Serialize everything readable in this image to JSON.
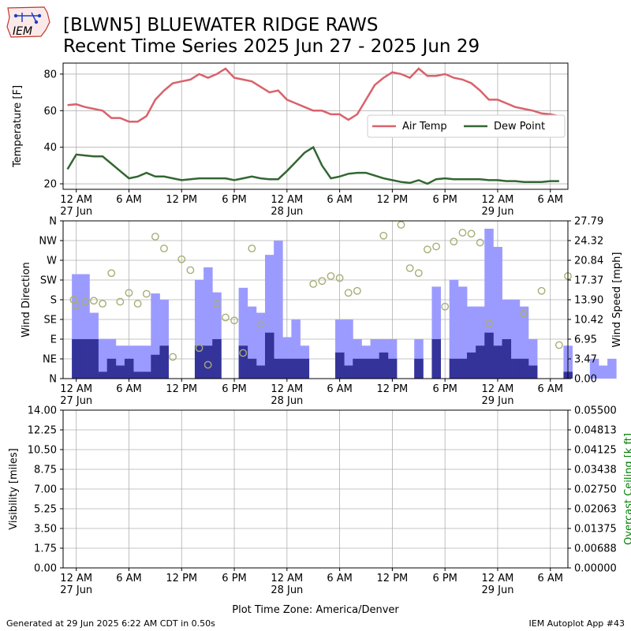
{
  "header": {
    "title_line1": "[BLWN5] BLUEWATER RIDGE RAWS",
    "title_line2": "Recent Time Series 2025 Jun 27 - 2025 Jun 29",
    "logo_text": "IEM"
  },
  "footer": {
    "generated": "Generated at 29 Jun 2025 6:22 AM CDT in 0.50s",
    "app": "IEM Autoplot App #43"
  },
  "colors": {
    "air_temp": "#d9626b",
    "dew_point": "#336633",
    "gust_bar": "#9b9bff",
    "speed_bar": "#33339a",
    "direction_marker": "#a8ad74",
    "ceiling_axis": "#008000",
    "grid": "#b0b0b0"
  },
  "x_axis": {
    "start": "2025-06-27 00:00",
    "end": "2025-06-29 06:00",
    "timezone_label": "Plot Time Zone: America/Denver",
    "tick_hours": [
      0,
      6,
      12,
      18,
      24,
      30,
      36,
      42,
      48,
      54
    ],
    "tick_labels": [
      "12 AM",
      "6 AM",
      "12 PM",
      "6 PM",
      "12 AM",
      "6 AM",
      "12 PM",
      "6 PM",
      "12 AM",
      "6 AM"
    ],
    "date_labels": [
      "27 Jun",
      "28 Jun",
      "29 Jun"
    ],
    "date_label_hours": [
      0,
      24,
      48
    ]
  },
  "chart_data": [
    {
      "type": "line",
      "ylabel": "Temperature [F]",
      "ylim": [
        17,
        86
      ],
      "yticks": [
        20,
        40,
        60,
        80
      ],
      "grid": true,
      "legend": "upper-right",
      "series": [
        {
          "name": "Air Temp",
          "color": "#d9626b",
          "points": [
            [
              -1,
              63
            ],
            [
              0,
              63.5
            ],
            [
              1,
              62
            ],
            [
              2,
              61
            ],
            [
              3,
              60
            ],
            [
              4,
              56
            ],
            [
              5,
              56
            ],
            [
              6,
              54
            ],
            [
              7,
              54
            ],
            [
              8,
              57
            ],
            [
              9,
              66
            ],
            [
              10,
              71
            ],
            [
              11,
              75
            ],
            [
              12,
              76
            ],
            [
              13,
              77
            ],
            [
              14,
              80
            ],
            [
              15,
              78
            ],
            [
              16,
              80
            ],
            [
              17,
              83
            ],
            [
              18,
              78
            ],
            [
              19,
              77
            ],
            [
              20,
              76
            ],
            [
              21,
              73
            ],
            [
              22,
              70
            ],
            [
              23,
              71
            ],
            [
              24,
              66
            ],
            [
              25,
              64
            ],
            [
              26,
              62
            ],
            [
              27,
              60
            ],
            [
              28,
              60
            ],
            [
              29,
              58
            ],
            [
              30,
              58
            ],
            [
              31,
              55
            ],
            [
              32,
              58
            ],
            [
              33,
              66
            ],
            [
              34,
              74
            ],
            [
              35,
              78
            ],
            [
              36,
              81
            ],
            [
              37,
              80
            ],
            [
              38,
              78
            ],
            [
              39,
              83
            ],
            [
              40,
              79
            ],
            [
              41,
              79
            ],
            [
              42,
              80
            ],
            [
              43,
              78
            ],
            [
              44,
              77
            ],
            [
              45,
              75
            ],
            [
              46,
              71
            ],
            [
              47,
              66
            ],
            [
              48,
              66
            ],
            [
              49,
              64
            ],
            [
              50,
              62
            ],
            [
              51,
              61
            ],
            [
              52,
              60
            ],
            [
              53,
              58.5
            ],
            [
              54,
              58
            ],
            [
              55,
              57
            ]
          ]
        },
        {
          "name": "Dew Point",
          "color": "#336633",
          "points": [
            [
              -1,
              28
            ],
            [
              0,
              36
            ],
            [
              1,
              35.5
            ],
            [
              2,
              35
            ],
            [
              3,
              35
            ],
            [
              4,
              31
            ],
            [
              5,
              27
            ],
            [
              6,
              23
            ],
            [
              7,
              24
            ],
            [
              8,
              26
            ],
            [
              9,
              24
            ],
            [
              10,
              24
            ],
            [
              11,
              23
            ],
            [
              12,
              22
            ],
            [
              13,
              22.5
            ],
            [
              14,
              23
            ],
            [
              15,
              23
            ],
            [
              16,
              23
            ],
            [
              17,
              23
            ],
            [
              18,
              22
            ],
            [
              19,
              23
            ],
            [
              20,
              24
            ],
            [
              21,
              23
            ],
            [
              22,
              22.5
            ],
            [
              23,
              22.5
            ],
            [
              24,
              27
            ],
            [
              25,
              32
            ],
            [
              26,
              37
            ],
            [
              27,
              40
            ],
            [
              28,
              30
            ],
            [
              29,
              23
            ],
            [
              30,
              24
            ],
            [
              31,
              25.5
            ],
            [
              32,
              26
            ],
            [
              33,
              26
            ],
            [
              34,
              24.5
            ],
            [
              35,
              23
            ],
            [
              36,
              22
            ],
            [
              37,
              21
            ],
            [
              38,
              20.5
            ],
            [
              39,
              22
            ],
            [
              40,
              20
            ],
            [
              41,
              22.5
            ],
            [
              42,
              23
            ],
            [
              43,
              22.5
            ],
            [
              44,
              22.5
            ],
            [
              45,
              22.5
            ],
            [
              46,
              22.5
            ],
            [
              47,
              22
            ],
            [
              48,
              22
            ],
            [
              49,
              21.5
            ],
            [
              50,
              21.5
            ],
            [
              51,
              21
            ],
            [
              52,
              21
            ],
            [
              53,
              21
            ],
            [
              54,
              21.5
            ],
            [
              55,
              21.5
            ]
          ]
        }
      ]
    },
    {
      "type": "bar",
      "ylabel": "Wind Direction",
      "y2label": "Wind Speed [mph]",
      "direction_ticks": [
        "N",
        "NE",
        "E",
        "SE",
        "S",
        "SW",
        "W",
        "NW",
        "N"
      ],
      "speed_ticks": [
        "0.00",
        "3.47",
        "6.95",
        "10.42",
        "13.90",
        "17.37",
        "20.84",
        "24.32",
        "27.79"
      ],
      "speed_lim": [
        0,
        27.79
      ],
      "grid": true,
      "gust_mph": [
        18.4,
        18.4,
        11.6,
        7.0,
        7.0,
        5.8,
        5.8,
        5.8,
        5.8,
        15.0,
        13.9,
        0,
        0,
        0,
        17.4,
        19.6,
        15.2,
        0,
        0,
        16,
        12.7,
        11.6,
        21.8,
        24.3,
        7.3,
        10.4,
        5.8,
        0,
        0,
        0,
        10.4,
        10.4,
        6.95,
        5.8,
        6.95,
        6.95,
        6.95,
        0,
        0,
        6.95,
        0,
        16.2,
        0,
        17.4,
        16.2,
        12.7,
        12.7,
        26.4,
        23.2,
        13.9,
        13.9,
        12.7,
        6.95,
        0,
        0,
        0,
        5.8,
        0,
        0,
        3.5,
        2.3,
        3.5
      ],
      "speed_mph": [
        6.95,
        6.95,
        6.95,
        1.2,
        3.5,
        2.3,
        3.5,
        1.2,
        1.2,
        4.2,
        5.8,
        0,
        0,
        0,
        5.8,
        5.8,
        6.95,
        0,
        0,
        5.8,
        3.5,
        2.3,
        8.1,
        3.5,
        3.5,
        3.5,
        3.5,
        0,
        0,
        0,
        4.6,
        2.3,
        3.5,
        3.5,
        3.5,
        4.6,
        3.5,
        0,
        0,
        3.5,
        0,
        6.95,
        0,
        3.5,
        3.5,
        4.6,
        5.8,
        8.1,
        5.8,
        6.95,
        3.5,
        3.5,
        2.3,
        0,
        0,
        0,
        1.2,
        0,
        0,
        0,
        0,
        0
      ],
      "direction_points": [
        [
          -0.3,
          4
        ],
        [
          0,
          3.7
        ],
        [
          1,
          3.9
        ],
        [
          2,
          3.95
        ],
        [
          3,
          3.8
        ],
        [
          4,
          5.35
        ],
        [
          5,
          3.9
        ],
        [
          6,
          4.35
        ],
        [
          7,
          3.8
        ],
        [
          8,
          4.3
        ],
        [
          9,
          7.2
        ],
        [
          10,
          6.6
        ],
        [
          11,
          1.1
        ],
        [
          12,
          6.05
        ],
        [
          13,
          5.5
        ],
        [
          14,
          1.55
        ],
        [
          15,
          0.7
        ],
        [
          16,
          3.8
        ],
        [
          17,
          3.1
        ],
        [
          18,
          2.95
        ],
        [
          19,
          1.3
        ],
        [
          20,
          6.6
        ],
        [
          21,
          2.75
        ],
        [
          27,
          4.8
        ],
        [
          28,
          4.95
        ],
        [
          29,
          5.2
        ],
        [
          30,
          5.1
        ],
        [
          31,
          4.35
        ],
        [
          32,
          4.45
        ],
        [
          35,
          7.25
        ],
        [
          37,
          7.8
        ],
        [
          38,
          5.6
        ],
        [
          39,
          5.35
        ],
        [
          40,
          6.55
        ],
        [
          41,
          6.7
        ],
        [
          42,
          3.65
        ],
        [
          43,
          6.95
        ],
        [
          44,
          7.4
        ],
        [
          45,
          7.35
        ],
        [
          46,
          6.9
        ],
        [
          47,
          2.8
        ],
        [
          51,
          3.3
        ],
        [
          53,
          4.45
        ],
        [
          55,
          1.7
        ],
        [
          56,
          5.2
        ]
      ]
    },
    {
      "type": "line",
      "ylabel": "Visibility [miles]",
      "y2label": "Overcast Ceiling [k ft]",
      "ylim": [
        0,
        14
      ],
      "yticks": [
        "0.00",
        "1.75",
        "3.50",
        "5.25",
        "7.00",
        "8.75",
        "10.50",
        "12.25",
        "14.00"
      ],
      "y2lim": [
        0,
        0.055
      ],
      "y2ticks": [
        "0.00000",
        "0.00688",
        "0.01375",
        "0.02063",
        "0.02750",
        "0.03438",
        "0.04125",
        "0.04813",
        "0.05500"
      ],
      "grid": true,
      "series": []
    }
  ]
}
